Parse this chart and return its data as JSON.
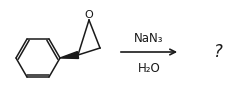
{
  "fig_width": 2.39,
  "fig_height": 0.96,
  "dpi": 100,
  "bg_color": "#ffffff",
  "line_color": "#1a1a1a",
  "text_color": "#1a1a1a",
  "reagent_top": "NaN₃",
  "reagent_bottom": "H₂O",
  "product_label": "?",
  "font_size_reagent": 8.5,
  "font_size_product": 12
}
